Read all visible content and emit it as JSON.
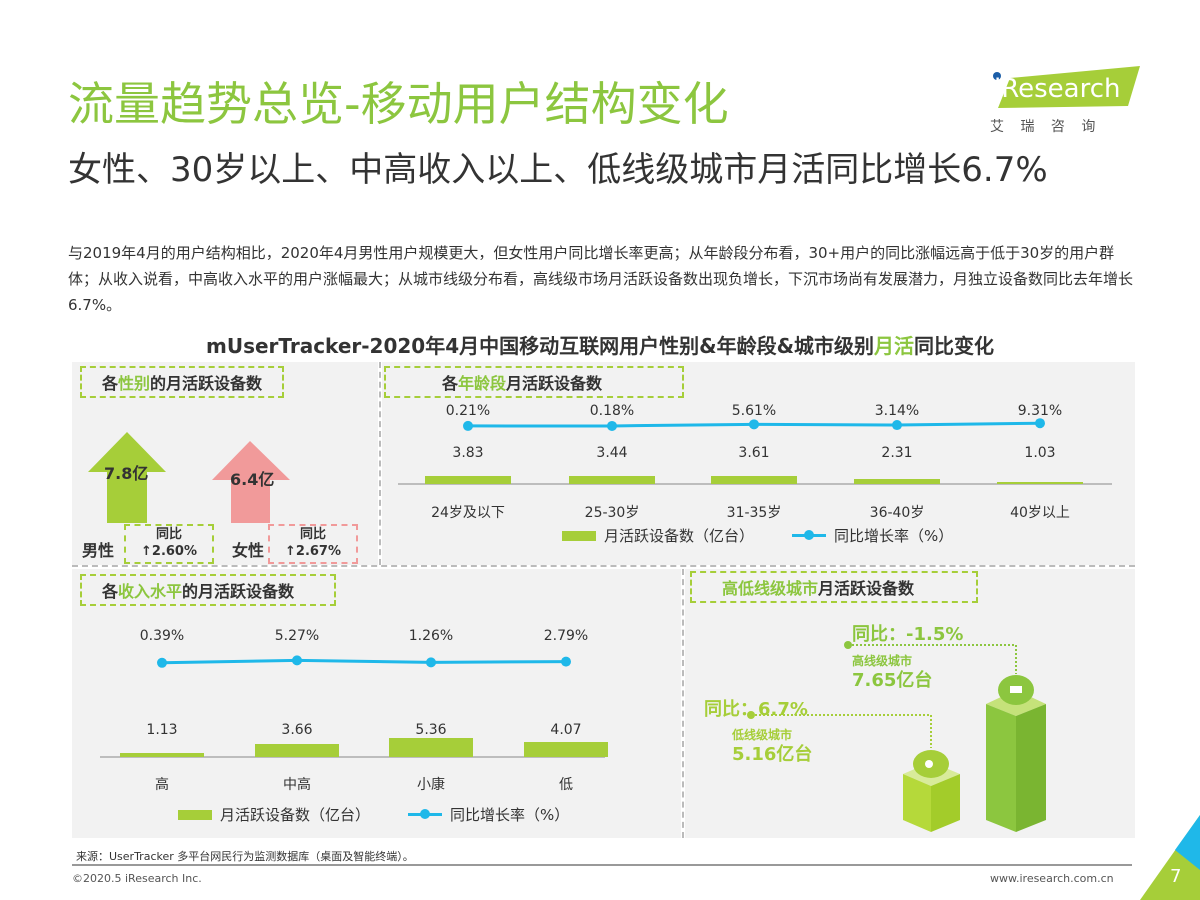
{
  "title": "流量趋势总览-移动用户结构变化",
  "subtitle": "女性、30岁以上、中高收入以上、低线级城市月活同比增长6.7%",
  "description": "与2019年4月的用户结构相比，2020年4月男性用户规模更大，但女性用户同比增长率更高；从年龄段分布看，30+用户的同比涨幅远高于低于30岁的用户群体；从收入说看，中高收入水平的用户涨幅最大；从城市线级分布看，高线级市场月活跃设备数出现负增长，下沉市场尚有发展潜力，月独立设备数同比去年增长6.7%。",
  "chart_title": {
    "pre": "mUserTracker-2020年4月中国移动互联网用户性别&年龄段&城市级别",
    "hl": "月活",
    "post": "同比变化"
  },
  "logo": {
    "text": "iResearch",
    "cn": "艾 瑞 咨 询"
  },
  "colors": {
    "green": "#a6ce39",
    "title_green": "#8cc63f",
    "line_blue": "#1fb8e9",
    "female_pink": "#f19a9a",
    "up_red": "#e60012"
  },
  "chart_data": [
    {
      "type": "infographic",
      "title": {
        "pre": "各",
        "hl": "性别",
        "post": "的月活跃设备数"
      },
      "items": [
        {
          "name": "男性",
          "value_label": "7.8亿",
          "yoy_label": "同比",
          "yoy": "↑2.60%"
        },
        {
          "name": "女性",
          "value_label": "6.4亿",
          "yoy_label": "同比",
          "yoy": "↑2.67%"
        }
      ]
    },
    {
      "type": "bar+line",
      "title": {
        "pre": "各",
        "hl": "年龄段",
        "post": "月活跃设备数"
      },
      "categories": [
        "24岁及以下",
        "25-30岁",
        "31-35岁",
        "36-40岁",
        "40岁以上"
      ],
      "series": [
        {
          "name": "月活跃设备数（亿台）",
          "type": "bar",
          "values": [
            3.83,
            3.44,
            3.61,
            2.31,
            1.03
          ],
          "labels": [
            "3.83",
            "3.44",
            "3.61",
            "2.31",
            "1.03"
          ]
        },
        {
          "name": "同比增长率（%）",
          "type": "line",
          "values": [
            0.21,
            0.18,
            5.61,
            3.14,
            9.31
          ],
          "labels": [
            "0.21%",
            "0.18%",
            "5.61%",
            "3.14%",
            "9.31%"
          ]
        }
      ]
    },
    {
      "type": "bar+line",
      "title": {
        "pre": "各",
        "hl": "收入水平",
        "post": "的月活跃设备数"
      },
      "categories": [
        "高",
        "中高",
        "小康",
        "低"
      ],
      "series": [
        {
          "name": "月活跃设备数（亿台）",
          "type": "bar",
          "values": [
            1.13,
            3.66,
            5.36,
            4.07
          ],
          "labels": [
            "1.13",
            "3.66",
            "5.36",
            "4.07"
          ]
        },
        {
          "name": "同比增长率（%）",
          "type": "line",
          "values": [
            0.39,
            5.27,
            1.26,
            2.79
          ],
          "labels": [
            "0.39%",
            "5.27%",
            "1.26%",
            "2.79%"
          ]
        }
      ]
    },
    {
      "type": "infographic",
      "title": {
        "hl": "高低线级城市",
        "post": "月活跃设备数"
      },
      "items": [
        {
          "name": "高线级城市",
          "value_label": "7.65亿台",
          "yoy": "同比：-1.5%"
        },
        {
          "name": "低线级城市",
          "value_label": "5.16亿台",
          "yoy": "同比：6.7%"
        }
      ]
    }
  ],
  "footer": {
    "source": "来源：UserTracker 多平台网民行为监测数据库（桌面及智能终端）。",
    "copyright": "©2020.5 iResearch Inc.",
    "url": "www.iresearch.com.cn",
    "page": "7"
  }
}
